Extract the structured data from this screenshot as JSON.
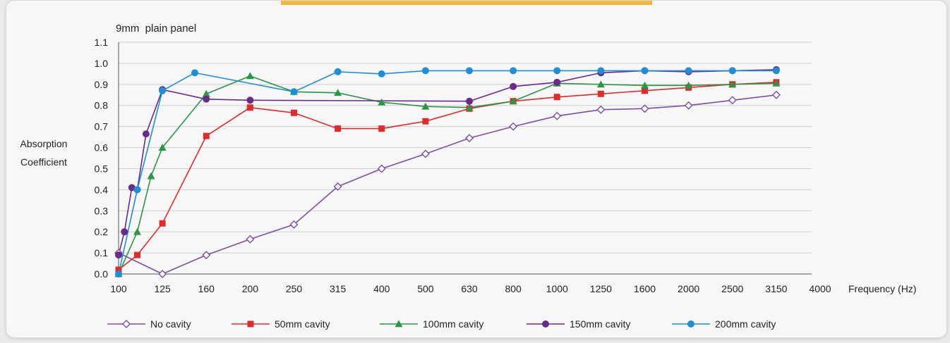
{
  "chart_data": {
    "type": "line",
    "title": "9mm  plain panel",
    "ylabel_lines": [
      "Absorption",
      "Coefficient"
    ],
    "xlabel": "Frequency (Hz)",
    "x_ticks": [
      "100",
      "125",
      "160",
      "200",
      "250",
      "315",
      "400",
      "500",
      "630",
      "800",
      "1000",
      "1250",
      "1600",
      "2000",
      "2500",
      "3150",
      "4000"
    ],
    "y_ticks": [
      "0.0",
      "0.1",
      "0.2",
      "0.3",
      "0.4",
      "0.5",
      "0.6",
      "0.7",
      "0.8",
      "0.9",
      "1.0",
      "1.1"
    ],
    "ylim": [
      0,
      1.1
    ],
    "grid": true,
    "legend_position": "bottom",
    "series": [
      {
        "name": "No cavity",
        "color": "#7b4fa6",
        "marker": "diamond-open",
        "points": [
          [
            100,
            0.1
          ],
          [
            125,
            0.0
          ],
          [
            160,
            0.09
          ],
          [
            200,
            0.165
          ],
          [
            250,
            0.235
          ],
          [
            315,
            0.415
          ],
          [
            400,
            0.5
          ],
          [
            500,
            0.57
          ],
          [
            630,
            0.645
          ],
          [
            800,
            0.7
          ],
          [
            1000,
            0.75
          ],
          [
            1250,
            0.78
          ],
          [
            1600,
            0.785
          ],
          [
            2000,
            0.8
          ],
          [
            2500,
            0.825
          ],
          [
            3150,
            0.85
          ]
        ]
      },
      {
        "name": "50mm cavity",
        "color": "#e02b2b",
        "marker": "square",
        "points": [
          [
            100,
            0.02
          ],
          [
            110,
            0.09
          ],
          [
            125,
            0.24
          ],
          [
            160,
            0.655
          ],
          [
            200,
            0.79
          ],
          [
            250,
            0.765
          ],
          [
            315,
            0.69
          ],
          [
            400,
            0.69
          ],
          [
            500,
            0.725
          ],
          [
            630,
            0.785
          ],
          [
            800,
            0.82
          ],
          [
            1000,
            0.84
          ],
          [
            1250,
            0.855
          ],
          [
            1600,
            0.87
          ],
          [
            2000,
            0.885
          ],
          [
            2500,
            0.9
          ],
          [
            3150,
            0.91
          ]
        ]
      },
      {
        "name": "100mm cavity",
        "color": "#2a9645",
        "marker": "triangle",
        "points": [
          [
            100,
            0.0
          ],
          [
            110,
            0.2
          ],
          [
            118,
            0.465
          ],
          [
            125,
            0.6
          ],
          [
            160,
            0.855
          ],
          [
            200,
            0.94
          ],
          [
            250,
            0.865
          ],
          [
            315,
            0.86
          ],
          [
            400,
            0.815
          ],
          [
            500,
            0.795
          ],
          [
            630,
            0.79
          ],
          [
            800,
            0.82
          ],
          [
            1000,
            0.905
          ],
          [
            1250,
            0.9
          ],
          [
            1600,
            0.895
          ],
          [
            2000,
            0.895
          ],
          [
            2500,
            0.9
          ],
          [
            3150,
            0.905
          ]
        ]
      },
      {
        "name": "150mm cavity",
        "color": "#6a2a8a",
        "marker": "circle",
        "points": [
          [
            100,
            0.09
          ],
          [
            103,
            0.2
          ],
          [
            107,
            0.41
          ],
          [
            110,
            0.4
          ],
          [
            115,
            0.665
          ],
          [
            125,
            0.875
          ],
          [
            160,
            0.83
          ],
          [
            200,
            0.825
          ],
          [
            630,
            0.82
          ],
          [
            800,
            0.89
          ],
          [
            1000,
            0.91
          ],
          [
            1250,
            0.955
          ],
          [
            1600,
            0.965
          ],
          [
            2000,
            0.96
          ],
          [
            2500,
            0.965
          ],
          [
            3150,
            0.97
          ]
        ]
      },
      {
        "name": "200mm cavity",
        "color": "#1e8fd6",
        "marker": "circle",
        "points": [
          [
            100,
            0.0
          ],
          [
            110,
            0.4
          ],
          [
            125,
            0.87
          ],
          [
            150,
            0.955
          ],
          [
            250,
            0.865
          ],
          [
            315,
            0.96
          ],
          [
            400,
            0.95
          ],
          [
            500,
            0.965
          ],
          [
            630,
            0.965
          ],
          [
            800,
            0.965
          ],
          [
            1000,
            0.965
          ],
          [
            1250,
            0.965
          ],
          [
            1600,
            0.965
          ],
          [
            2000,
            0.965
          ],
          [
            2500,
            0.965
          ],
          [
            3150,
            0.965
          ]
        ]
      }
    ]
  }
}
